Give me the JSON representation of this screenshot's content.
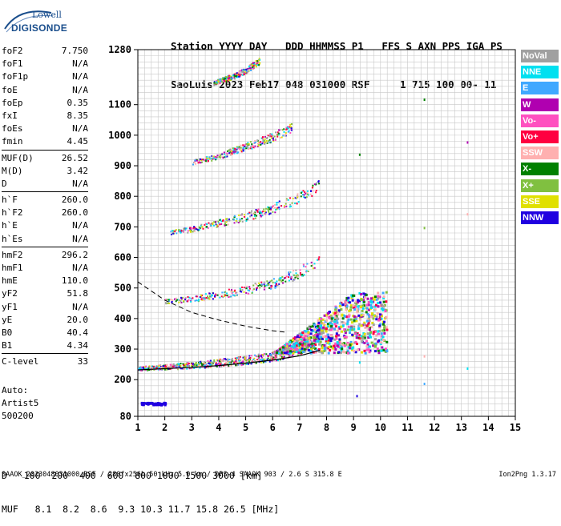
{
  "logo": {
    "brand": "Lowell",
    "product": "DIGISONDE"
  },
  "header": {
    "line1": "Station YYYY DAY   DDD HHMMSS P1   FFS S AXN PPS IGA PS",
    "line2": "SaoLuis 2023 Feb17 048 031000 RSF     1 715 100 00- 11"
  },
  "params": [
    {
      "label": "foF2",
      "value": "7.750"
    },
    {
      "label": "foF1",
      "value": "N/A"
    },
    {
      "label": "foF1p",
      "value": "N/A"
    },
    {
      "label": "foE",
      "value": "N/A"
    },
    {
      "label": "foEp",
      "value": "0.35"
    },
    {
      "label": "fxI",
      "value": "8.35"
    },
    {
      "label": "foEs",
      "value": "N/A"
    },
    {
      "label": "fmin",
      "value": "4.45"
    },
    {
      "label": "MUF(D)",
      "value": "26.52"
    },
    {
      "label": "M(D)",
      "value": "3.42"
    },
    {
      "label": "D",
      "value": "N/A"
    },
    {
      "label": "h`F",
      "value": "260.0"
    },
    {
      "label": "h`F2",
      "value": "260.0"
    },
    {
      "label": "h`E",
      "value": "N/A"
    },
    {
      "label": "h`Es",
      "value": "N/A"
    },
    {
      "label": "hmF2",
      "value": "296.2"
    },
    {
      "label": "hmF1",
      "value": "N/A"
    },
    {
      "label": "hmE",
      "value": "110.0"
    },
    {
      "label": "yF2",
      "value": "51.8"
    },
    {
      "label": "yF1",
      "value": "N/A"
    },
    {
      "label": "yE",
      "value": "20.0"
    },
    {
      "label": "B0",
      "value": "40.4"
    },
    {
      "label": "B1",
      "value": "4.34"
    },
    {
      "label": "C-level",
      "value": "33"
    }
  ],
  "auto": {
    "label": "Auto:",
    "artist": "Artist5",
    "code": "500200"
  },
  "legend": [
    {
      "label": "NoVal",
      "color": "#a0a0a0"
    },
    {
      "label": "NNE",
      "color": "#00e0f0"
    },
    {
      "label": "E",
      "color": "#40a8ff"
    },
    {
      "label": "W",
      "color": "#b000b0"
    },
    {
      "label": "Vo-",
      "color": "#ff50c0"
    },
    {
      "label": "Vo+",
      "color": "#ff0040"
    },
    {
      "label": "SSW",
      "color": "#ffb0b0"
    },
    {
      "label": "X-",
      "color": "#008000"
    },
    {
      "label": "X+",
      "color": "#80c040"
    },
    {
      "label": "SSE",
      "color": "#e0e000"
    },
    {
      "label": "NNW",
      "color": "#2000e0"
    }
  ],
  "footer": {
    "d_label": "D",
    "d_values": "100  200  400  600  800 1000 1500 3000 [km]",
    "muf_label": "MUF",
    "muf_values": "8.1  8.2  8.6  9.3 10.3 11.7 15.8 26.5 [MHz]",
    "file_info": "SAAOK_2023048031000.RSF / 280fx256h 50 kHz 5.0 km / DPS-4 SAAOK 903 / 2.6 S 315.8 E",
    "version": "Ion2Png 1.3.17"
  },
  "chart_data": {
    "type": "scatter",
    "xlim": [
      1,
      15
    ],
    "ylim": [
      80,
      1280
    ],
    "x_ticks": [
      1,
      2,
      3,
      4,
      5,
      6,
      7,
      8,
      9,
      10,
      11,
      12,
      13,
      14,
      15
    ],
    "y_ticks": [
      80,
      200,
      300,
      400,
      500,
      600,
      700,
      800,
      900,
      1000,
      1100,
      1280
    ],
    "grid": true,
    "traces": [
      {
        "name": "F2 echo",
        "x": [
          1.0,
          1.5,
          2.0,
          2.5,
          3.0,
          3.5,
          4.0,
          4.5,
          5.0,
          5.5,
          6.0,
          6.5,
          7.0,
          7.5,
          7.8
        ],
        "y": [
          235,
          238,
          240,
          242,
          245,
          248,
          252,
          255,
          260,
          265,
          272,
          282,
          295,
          320,
          380
        ]
      },
      {
        "name": "2-hop",
        "x": [
          2.0,
          3.0,
          4.0,
          5.0,
          6.0,
          7.0,
          7.7
        ],
        "y": [
          455,
          462,
          475,
          490,
          510,
          545,
          590
        ]
      },
      {
        "name": "3-hop",
        "x": [
          2.2,
          3.0,
          4.0,
          5.0,
          6.0,
          7.0,
          7.7
        ],
        "y": [
          680,
          690,
          710,
          730,
          755,
          790,
          830
        ]
      },
      {
        "name": "4-hop",
        "x": [
          3.0,
          4.0,
          5.0,
          6.0,
          6.7
        ],
        "y": [
          910,
          930,
          960,
          990,
          1020
        ]
      },
      {
        "name": "5-hop",
        "x": [
          3.8,
          4.5,
          5.0,
          5.5
        ],
        "y": [
          1170,
          1190,
          1210,
          1240
        ]
      }
    ],
    "profile_curve": {
      "x": [
        1.0,
        2.0,
        3.0,
        4.0,
        5.0,
        6.0,
        7.0,
        7.5,
        7.75
      ],
      "y": [
        232,
        236,
        240,
        246,
        254,
        264,
        278,
        290,
        296
      ]
    },
    "dashed_curve": {
      "x": [
        1.0,
        2.0,
        3.0,
        4.0,
        5.0,
        6.0,
        6.5
      ],
      "y": [
        520,
        460,
        420,
        395,
        375,
        360,
        355
      ]
    }
  }
}
